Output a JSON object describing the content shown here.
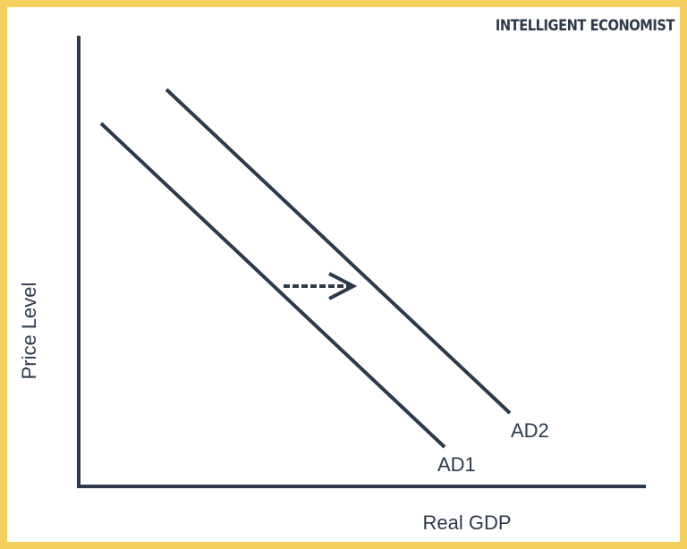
{
  "brand": "INTELLIGENT ECONOMIST",
  "axes": {
    "y_label": "Price Level",
    "x_label": "Real GDP"
  },
  "curves": [
    {
      "label": "AD1"
    },
    {
      "label": "AD2"
    }
  ]
}
